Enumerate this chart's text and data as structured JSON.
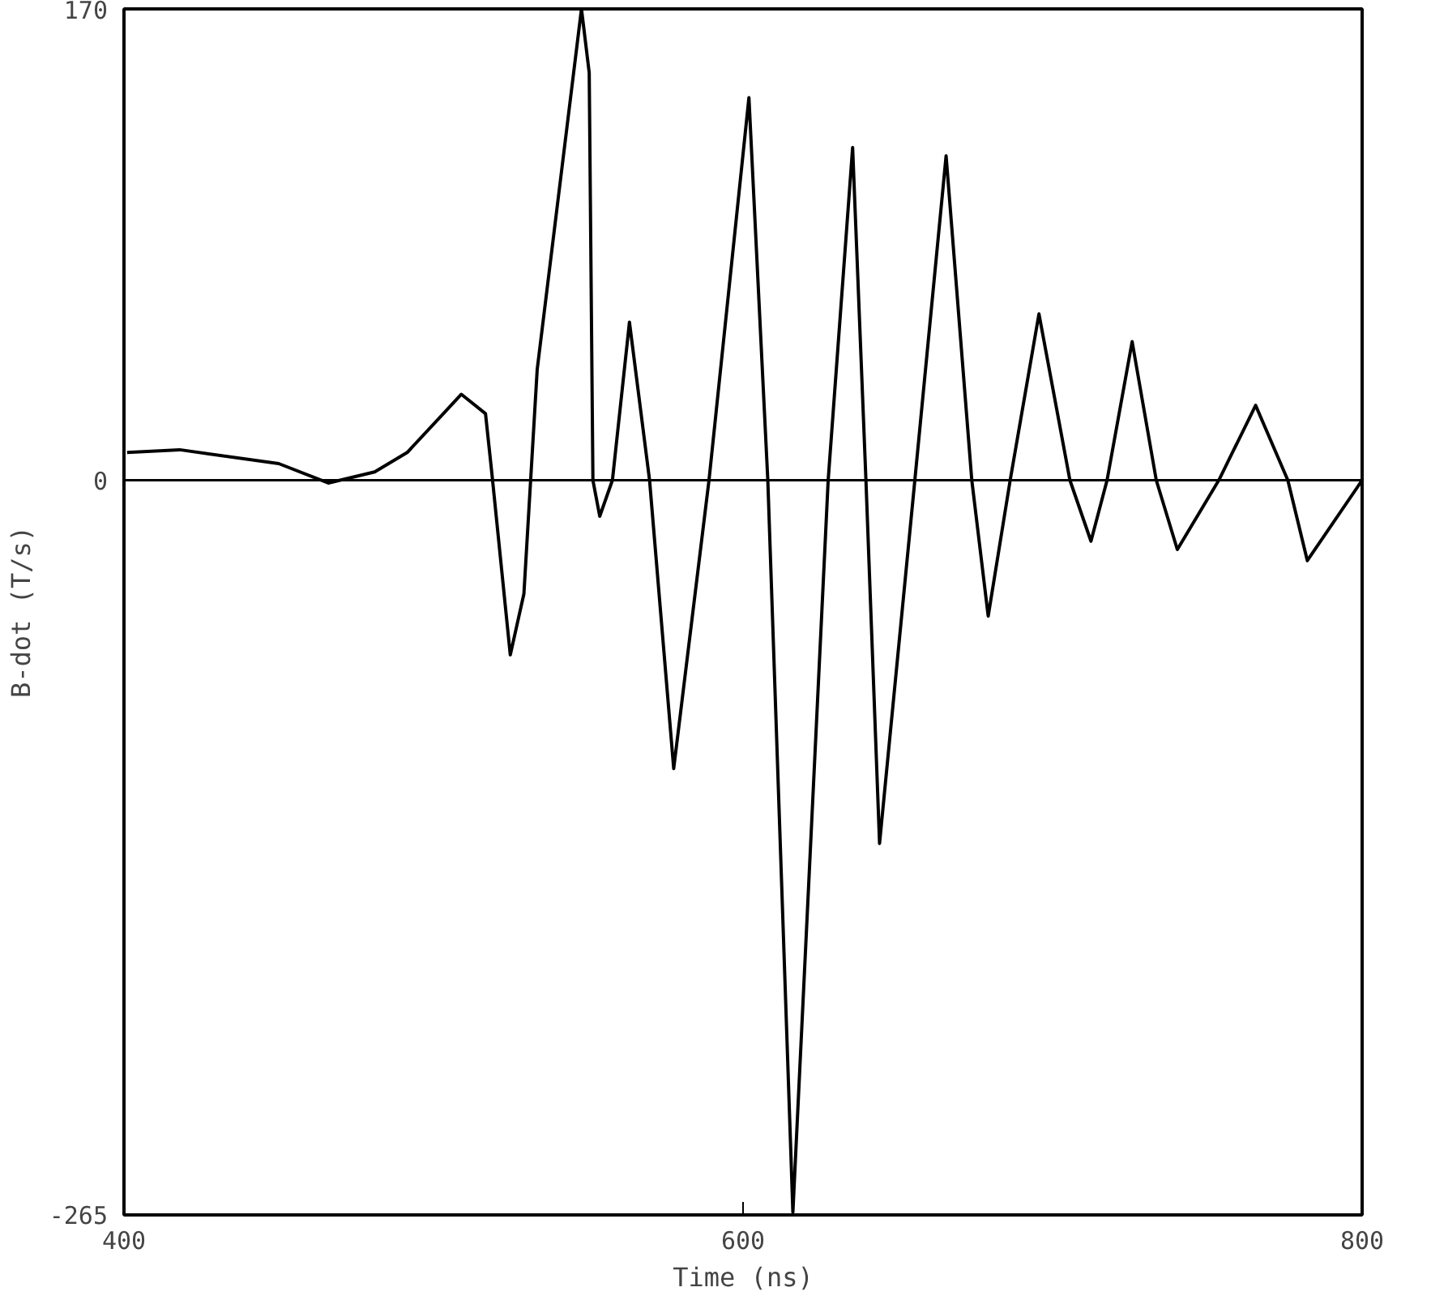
{
  "chart_data": {
    "type": "line",
    "xlabel": "Time (ns)",
    "ylabel": "B-dot (T/s)",
    "x": [
      401,
      418,
      450,
      466,
      481,
      491.5,
      509,
      516.8,
      518.9,
      524.8,
      529.2,
      533.5,
      547.8,
      550.3,
      551.5,
      553.7,
      557.8,
      563.3,
      569.8,
      577.6,
      589,
      601.9,
      608,
      616.1,
      627.5,
      635.4,
      639.7,
      644.1,
      655.5,
      665.6,
      673.9,
      679.2,
      686.3,
      695.6,
      705.6,
      712.4,
      717.6,
      725.7,
      733.5,
      740.3,
      753.7,
      765.6,
      776,
      782.3,
      800
    ],
    "series": [
      {
        "color": "#000000",
        "values": [
          10,
          11,
          6,
          -1,
          3,
          10,
          31,
          24,
          2,
          -63,
          -41,
          40,
          170,
          147,
          0,
          -13,
          0,
          57,
          0,
          -104,
          0,
          138,
          0,
          -264,
          0,
          120,
          0,
          -131,
          0,
          117,
          0,
          -49,
          0,
          60,
          0,
          -22,
          0,
          50,
          0,
          -25,
          0,
          27,
          0,
          -29,
          0
        ]
      }
    ],
    "xlim": [
      400,
      800
    ],
    "ylim": [
      -265,
      170
    ],
    "xticks": [
      400,
      600,
      800
    ],
    "yticks": [
      170,
      0,
      -265
    ],
    "ref_lines": [
      {
        "axis": "y",
        "value": 0
      }
    ],
    "grid": false,
    "marker": "none",
    "line_style": "solid"
  }
}
